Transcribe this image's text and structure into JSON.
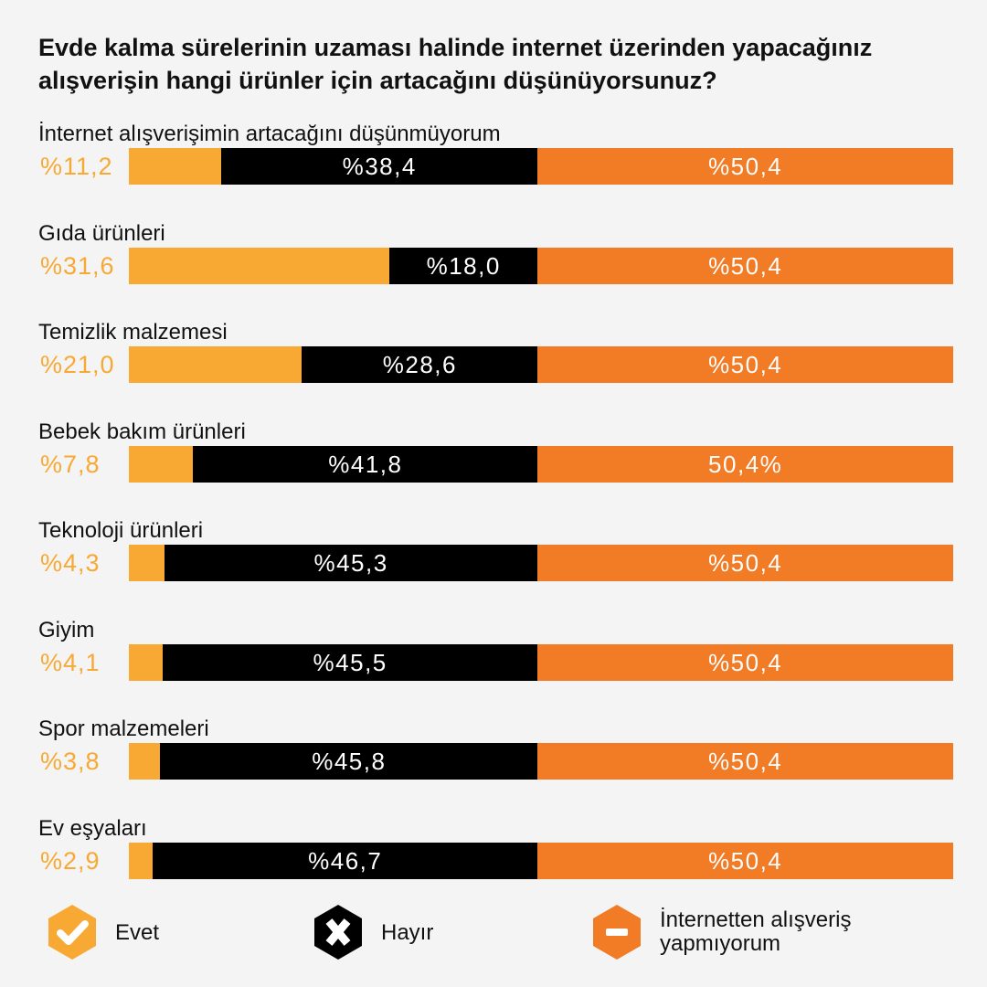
{
  "colors": {
    "background": "#f4f4f4",
    "evet": "#f7a934",
    "hayir": "#000000",
    "no_shopping": "#f27b25",
    "text": "#111111"
  },
  "title": "Evde kalma sürelerinin uzaması halinde internet üzerinden yapacağınız alışverişin hangi ürünler için artacağını düşünüyorsunuz?",
  "chart_data": {
    "type": "bar",
    "orientation": "horizontal",
    "stacked": true,
    "title": "Evde kalma sürelerinin uzaması halinde internet üzerinden yapacağınız alışverişin hangi ürünler için artacağını düşünüyorsunuz?",
    "categories": [
      "İnternet alışverişimin artacağını düşünmüyorum",
      "Gıda ürünleri",
      "Temizlik malzemesi",
      "Bebek bakım ürünleri",
      "Teknoloji ürünleri",
      "Giyim",
      "Spor malzemeleri",
      "Ev eşyaları"
    ],
    "series": [
      {
        "name": "Evet",
        "values": [
          11.2,
          31.6,
          21.0,
          7.8,
          4.3,
          4.1,
          3.8,
          2.9
        ],
        "labels": [
          "%11,2",
          "%31,6",
          "%21,0",
          "%7,8",
          "%4,3",
          "%4,1",
          "%3,8",
          "%2,9"
        ],
        "color": "#f7a934"
      },
      {
        "name": "Hayır",
        "values": [
          38.4,
          18.0,
          28.6,
          41.8,
          45.3,
          45.5,
          45.8,
          46.7
        ],
        "labels": [
          "%38,4",
          "%18,0",
          "%28,6",
          "%41,8",
          "%45,3",
          "%45,5",
          "%45,8",
          "%46,7"
        ],
        "color": "#000000"
      },
      {
        "name": "İnternetten alışveriş yapmıyorum",
        "values": [
          50.4,
          50.4,
          50.4,
          50.4,
          50.4,
          50.4,
          50.4,
          50.4
        ],
        "labels": [
          "%50,4",
          "%50,4",
          "%50,4",
          "50,4%",
          "%50,4",
          "%50,4",
          "%50,4",
          "%50,4"
        ],
        "color": "#f27b25"
      }
    ],
    "xlim": [
      0,
      100
    ],
    "grid": false,
    "legend": "bottom"
  },
  "legend": [
    {
      "icon": "check-icon",
      "label": "Evet",
      "color": "#f7a934"
    },
    {
      "icon": "x-icon",
      "label": "Hayır",
      "color": "#000000"
    },
    {
      "icon": "minus-icon",
      "label": "İnternetten alışveriş yapmıyorum",
      "lines": [
        "İnternetten alışveriş",
        "yapmıyorum"
      ],
      "color": "#f27b25"
    }
  ]
}
